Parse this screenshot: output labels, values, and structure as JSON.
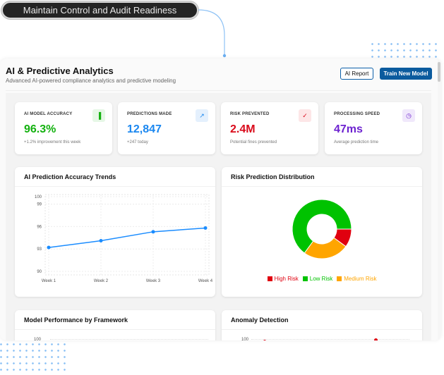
{
  "banner": {
    "label": "Maintain Control and Audit Readiness"
  },
  "header": {
    "title": "AI & Predictive Analytics",
    "subtitle": "Advanced AI-powered compliance analytics and predictive modeling",
    "ai_report_label": "AI Report",
    "train_label": "Train New Model"
  },
  "stats": [
    {
      "label": "AI MODEL ACCURACY",
      "value": "96.3%",
      "note": "+1.2% improvement this week",
      "icon": "bar-chart-icon",
      "color": "#13b10f",
      "bg": "#e6f7e6"
    },
    {
      "label": "PREDICTIONS MADE",
      "value": "12,847",
      "note": "+247 today",
      "icon": "trend-line-icon",
      "color": "#1a87f0",
      "bg": "#e4f0fd"
    },
    {
      "label": "RISK PREVENTED",
      "value": "2.4M",
      "note": "Potential fines prevented",
      "icon": "shield-check-icon",
      "color": "#d9091a",
      "bg": "#fde6e7"
    },
    {
      "label": "PROCESSING SPEED",
      "value": "47ms",
      "note": "Average prediction time",
      "icon": "clock-icon",
      "color": "#6d22d0",
      "bg": "#f0e8fb"
    }
  ],
  "charts": {
    "accuracy_title": "AI Prediction Accuracy Trends",
    "risk_title": "Risk Prediction Distribution",
    "framework_title": "Model Performance by Framework",
    "anomaly_title": "Anomaly Detection",
    "framework_tick": "100",
    "anomaly_tick": "100"
  },
  "chart_data": [
    {
      "type": "line",
      "categories": [
        "Week 1",
        "Week 2",
        "Week 3",
        "Week 4"
      ],
      "values": [
        93.2,
        94.1,
        95.3,
        95.8
      ],
      "yticks": [
        90,
        93,
        96,
        99,
        100
      ],
      "ylim": [
        90,
        100
      ],
      "grid": true,
      "color": "#1a8cff"
    },
    {
      "type": "pie",
      "donut": true,
      "labels": [
        "High Risk",
        "Low Risk",
        "Medium Risk"
      ],
      "values": [
        10,
        65,
        25
      ],
      "colors": [
        "#e0000f",
        "#00c200",
        "#ffa500"
      ],
      "legend": "bottom"
    }
  ]
}
